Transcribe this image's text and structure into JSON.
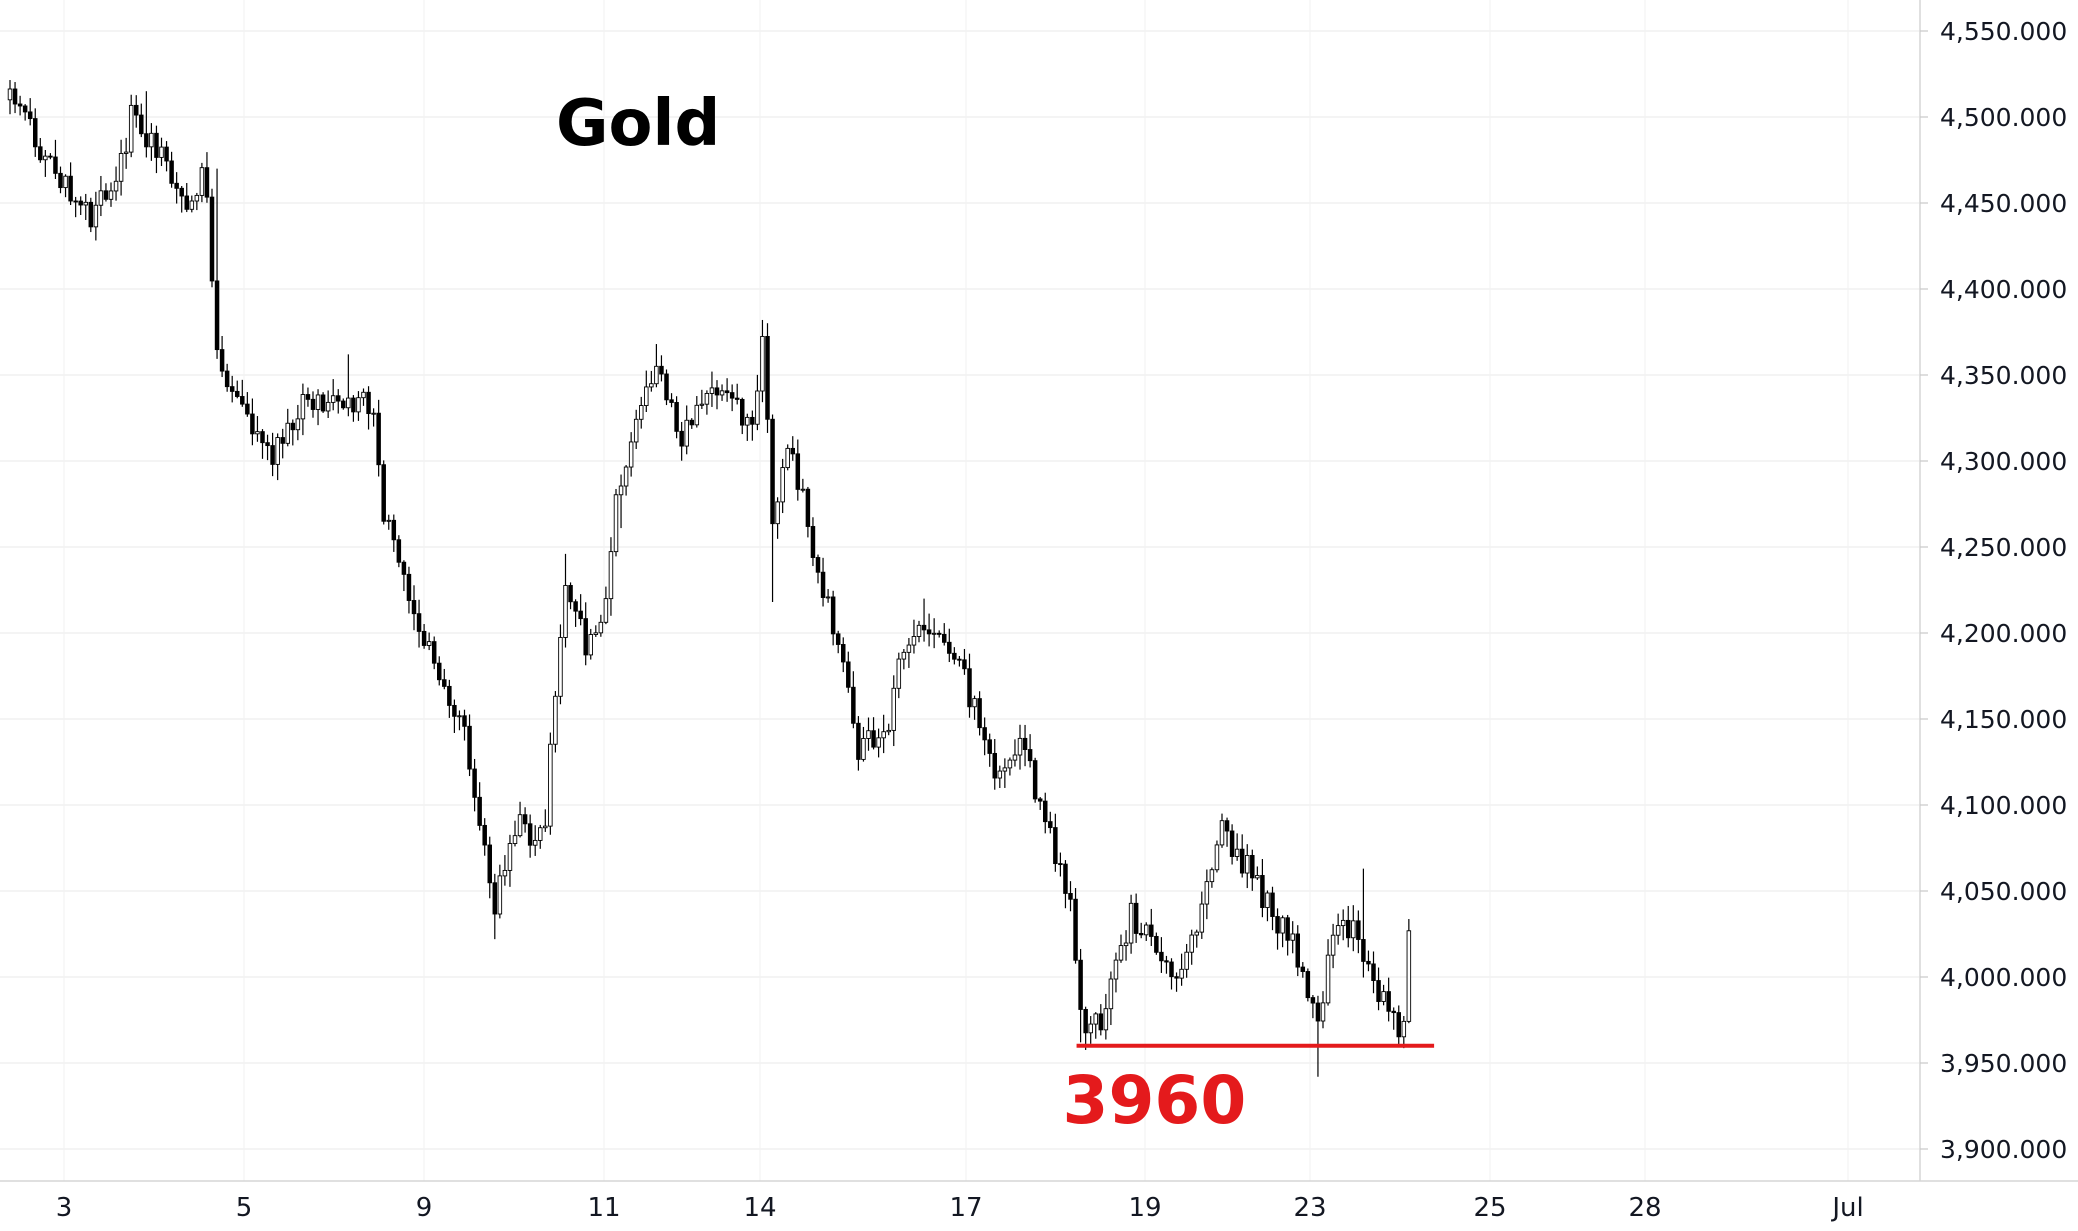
{
  "chart_data": {
    "type": "candlestick",
    "title": "Gold",
    "xlabel": "",
    "ylabel": "",
    "ylim": [
      3885,
      4570
    ],
    "grid": true,
    "price_axis": {
      "position": "right",
      "ticks": [
        4550,
        4500,
        4450,
        4400,
        4350,
        4300,
        4250,
        4200,
        4150,
        4100,
        4050,
        4000,
        3950,
        3900
      ],
      "tick_labels": [
        "4,550.000",
        "4,500.000",
        "4,450.000",
        "4,400.000",
        "4,350.000",
        "4,300.000",
        "4,250.000",
        "4,200.000",
        "4,150.000",
        "4,100.000",
        "4,050.000",
        "4,000.000",
        "3,950.000",
        "3,900.000"
      ]
    },
    "date_axis": {
      "tick_labels": [
        "3",
        "5",
        "9",
        "11",
        "14",
        "17",
        "19",
        "23",
        "25",
        "28",
        "Jul"
      ]
    },
    "price_path": [
      {
        "d": 0.0,
        "p": 4510,
        "label": "3"
      },
      {
        "d": 0.9,
        "p": 4460,
        "label": ""
      },
      {
        "d": 1.3,
        "p": 4440,
        "label": ""
      },
      {
        "d": 1.9,
        "p": 4480,
        "label": ""
      },
      {
        "d": 2.0,
        "p": 4505,
        "label": "5"
      },
      {
        "d": 2.5,
        "p": 4475,
        "label": ""
      },
      {
        "d": 2.9,
        "p": 4445,
        "label": ""
      },
      {
        "d": 3.2,
        "p": 4470,
        "label": ""
      },
      {
        "d": 3.45,
        "p": 4355,
        "label": ""
      },
      {
        "d": 3.75,
        "p": 4330,
        "label": ""
      },
      {
        "d": 4.3,
        "p": 4300,
        "label": ""
      },
      {
        "d": 4.8,
        "p": 4335,
        "label": ""
      },
      {
        "d": 5.4,
        "p": 4330,
        "label": ""
      },
      {
        "d": 6.0,
        "p": 4335,
        "label": "9"
      },
      {
        "d": 6.15,
        "p": 4270,
        "label": ""
      },
      {
        "d": 6.5,
        "p": 4230,
        "label": ""
      },
      {
        "d": 7.0,
        "p": 4180,
        "label": ""
      },
      {
        "d": 7.5,
        "p": 4140,
        "label": ""
      },
      {
        "d": 7.9,
        "p": 4060,
        "label": ""
      },
      {
        "d": 8.0,
        "p": 4040,
        "label": "11"
      },
      {
        "d": 8.3,
        "p": 4090,
        "label": ""
      },
      {
        "d": 8.8,
        "p": 4080,
        "label": ""
      },
      {
        "d": 9.0,
        "p": 4170,
        "label": ""
      },
      {
        "d": 9.2,
        "p": 4230,
        "label": ""
      },
      {
        "d": 9.5,
        "p": 4190,
        "label": ""
      },
      {
        "d": 9.85,
        "p": 4215,
        "label": ""
      },
      {
        "d": 10.0,
        "p": 4280,
        "label": "14"
      },
      {
        "d": 10.35,
        "p": 4330,
        "label": ""
      },
      {
        "d": 10.7,
        "p": 4355,
        "label": ""
      },
      {
        "d": 11.1,
        "p": 4315,
        "label": ""
      },
      {
        "d": 11.6,
        "p": 4345,
        "label": ""
      },
      {
        "d": 12.0,
        "p": 4330,
        "label": "17"
      },
      {
        "d": 12.25,
        "p": 4325,
        "label": ""
      },
      {
        "d": 12.45,
        "p": 4375,
        "label": ""
      },
      {
        "d": 12.6,
        "p": 4245,
        "label": ""
      },
      {
        "d": 12.8,
        "p": 4320,
        "label": ""
      },
      {
        "d": 13.0,
        "p": 4290,
        "label": ""
      },
      {
        "d": 13.3,
        "p": 4240,
        "label": ""
      },
      {
        "d": 13.7,
        "p": 4190,
        "label": ""
      },
      {
        "d": 14.0,
        "p": 4130,
        "label": "19"
      },
      {
        "d": 14.5,
        "p": 4150,
        "label": ""
      },
      {
        "d": 14.8,
        "p": 4200,
        "label": ""
      },
      {
        "d": 15.2,
        "p": 4205,
        "label": ""
      },
      {
        "d": 15.6,
        "p": 4185,
        "label": ""
      },
      {
        "d": 16.0,
        "p": 4150,
        "label": "23"
      },
      {
        "d": 16.3,
        "p": 4110,
        "label": ""
      },
      {
        "d": 16.7,
        "p": 4140,
        "label": ""
      },
      {
        "d": 17.0,
        "p": 4100,
        "label": ""
      },
      {
        "d": 17.5,
        "p": 4040,
        "label": ""
      },
      {
        "d": 17.7,
        "p": 3975,
        "label": ""
      },
      {
        "d": 18.0,
        "p": 3970,
        "label": "25"
      },
      {
        "d": 18.5,
        "p": 4035,
        "label": ""
      },
      {
        "d": 18.9,
        "p": 4020,
        "label": ""
      },
      {
        "d": 19.2,
        "p": 3990,
        "label": ""
      },
      {
        "d": 19.6,
        "p": 4030,
        "label": ""
      },
      {
        "d": 20.0,
        "p": 4085,
        "label": "28"
      },
      {
        "d": 20.4,
        "p": 4065,
        "label": ""
      },
      {
        "d": 20.8,
        "p": 4040,
        "label": ""
      },
      {
        "d": 21.3,
        "p": 4010,
        "label": ""
      },
      {
        "d": 21.6,
        "p": 3965,
        "label": ""
      },
      {
        "d": 21.8,
        "p": 4030,
        "label": ""
      },
      {
        "d": 22.2,
        "p": 4030,
        "label": ""
      },
      {
        "d": 22.6,
        "p": 3990,
        "label": ""
      },
      {
        "d": 22.85,
        "p": 3970,
        "label": ""
      },
      {
        "d": 23.0,
        "p": 3975,
        "label": "Jul"
      },
      {
        "d": 23.1,
        "p": 4030,
        "label": ""
      }
    ],
    "extremes": [
      {
        "d": 2.25,
        "p": 4515
      },
      {
        "d": 3.45,
        "p": 4470
      },
      {
        "d": 5.55,
        "p": 4362
      },
      {
        "d": 8.0,
        "p": 4022
      },
      {
        "d": 9.2,
        "p": 4246
      },
      {
        "d": 10.1,
        "p": 4261
      },
      {
        "d": 10.7,
        "p": 4368
      },
      {
        "d": 12.45,
        "p": 4382
      },
      {
        "d": 12.6,
        "p": 4218
      },
      {
        "d": 14.0,
        "p": 4120
      },
      {
        "d": 15.1,
        "p": 4220
      },
      {
        "d": 17.7,
        "p": 3962
      },
      {
        "d": 20.0,
        "p": 4095
      },
      {
        "d": 21.6,
        "p": 3942
      },
      {
        "d": 22.35,
        "p": 4063
      },
      {
        "d": 22.9,
        "p": 3960
      }
    ],
    "support_level": {
      "value": 3960,
      "label": "3960",
      "color": "#e41a1c",
      "from_day": 17.6,
      "to_day": 23.5
    },
    "candle_color": "#000000"
  }
}
